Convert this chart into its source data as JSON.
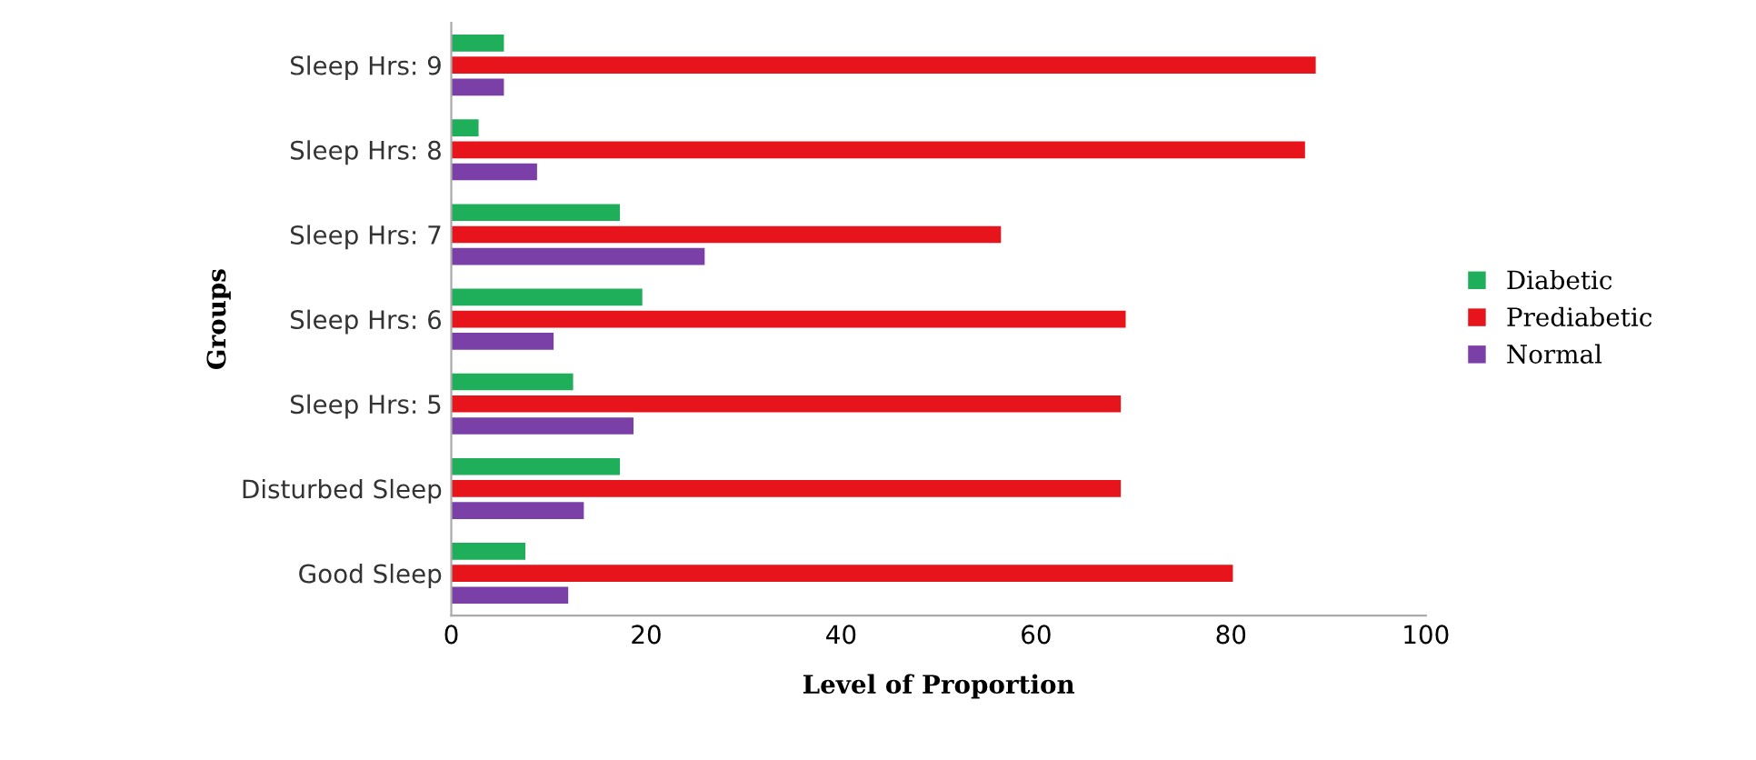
{
  "chart_data": {
    "type": "bar",
    "orientation": "horizontal",
    "xlabel": "Level of Proportion",
    "ylabel": "Groups",
    "categories": [
      "Sleep Hrs: 9",
      "Sleep Hrs: 8",
      "Sleep Hrs: 7",
      "Sleep Hrs: 6",
      "Sleep Hrs: 5",
      "Disturbed Sleep",
      "Good Sleep"
    ],
    "series": [
      {
        "name": "Diabetic",
        "color": "#1fae5a",
        "values": [
          5.4,
          2.8,
          17.3,
          19.6,
          12.5,
          17.3,
          7.6
        ]
      },
      {
        "name": "Prediabetic",
        "color": "#e8141b",
        "values": [
          88.7,
          87.6,
          56.4,
          69.2,
          68.7,
          68.7,
          80.2
        ]
      },
      {
        "name": "Normal",
        "color": "#7b3fa8",
        "values": [
          5.4,
          8.8,
          26,
          10.5,
          18.7,
          13.6,
          12.0
        ]
      }
    ],
    "xlim": [
      0,
      100
    ],
    "xticks": [
      0,
      20,
      40,
      60,
      80,
      100
    ],
    "grid": false,
    "legend": "right"
  }
}
